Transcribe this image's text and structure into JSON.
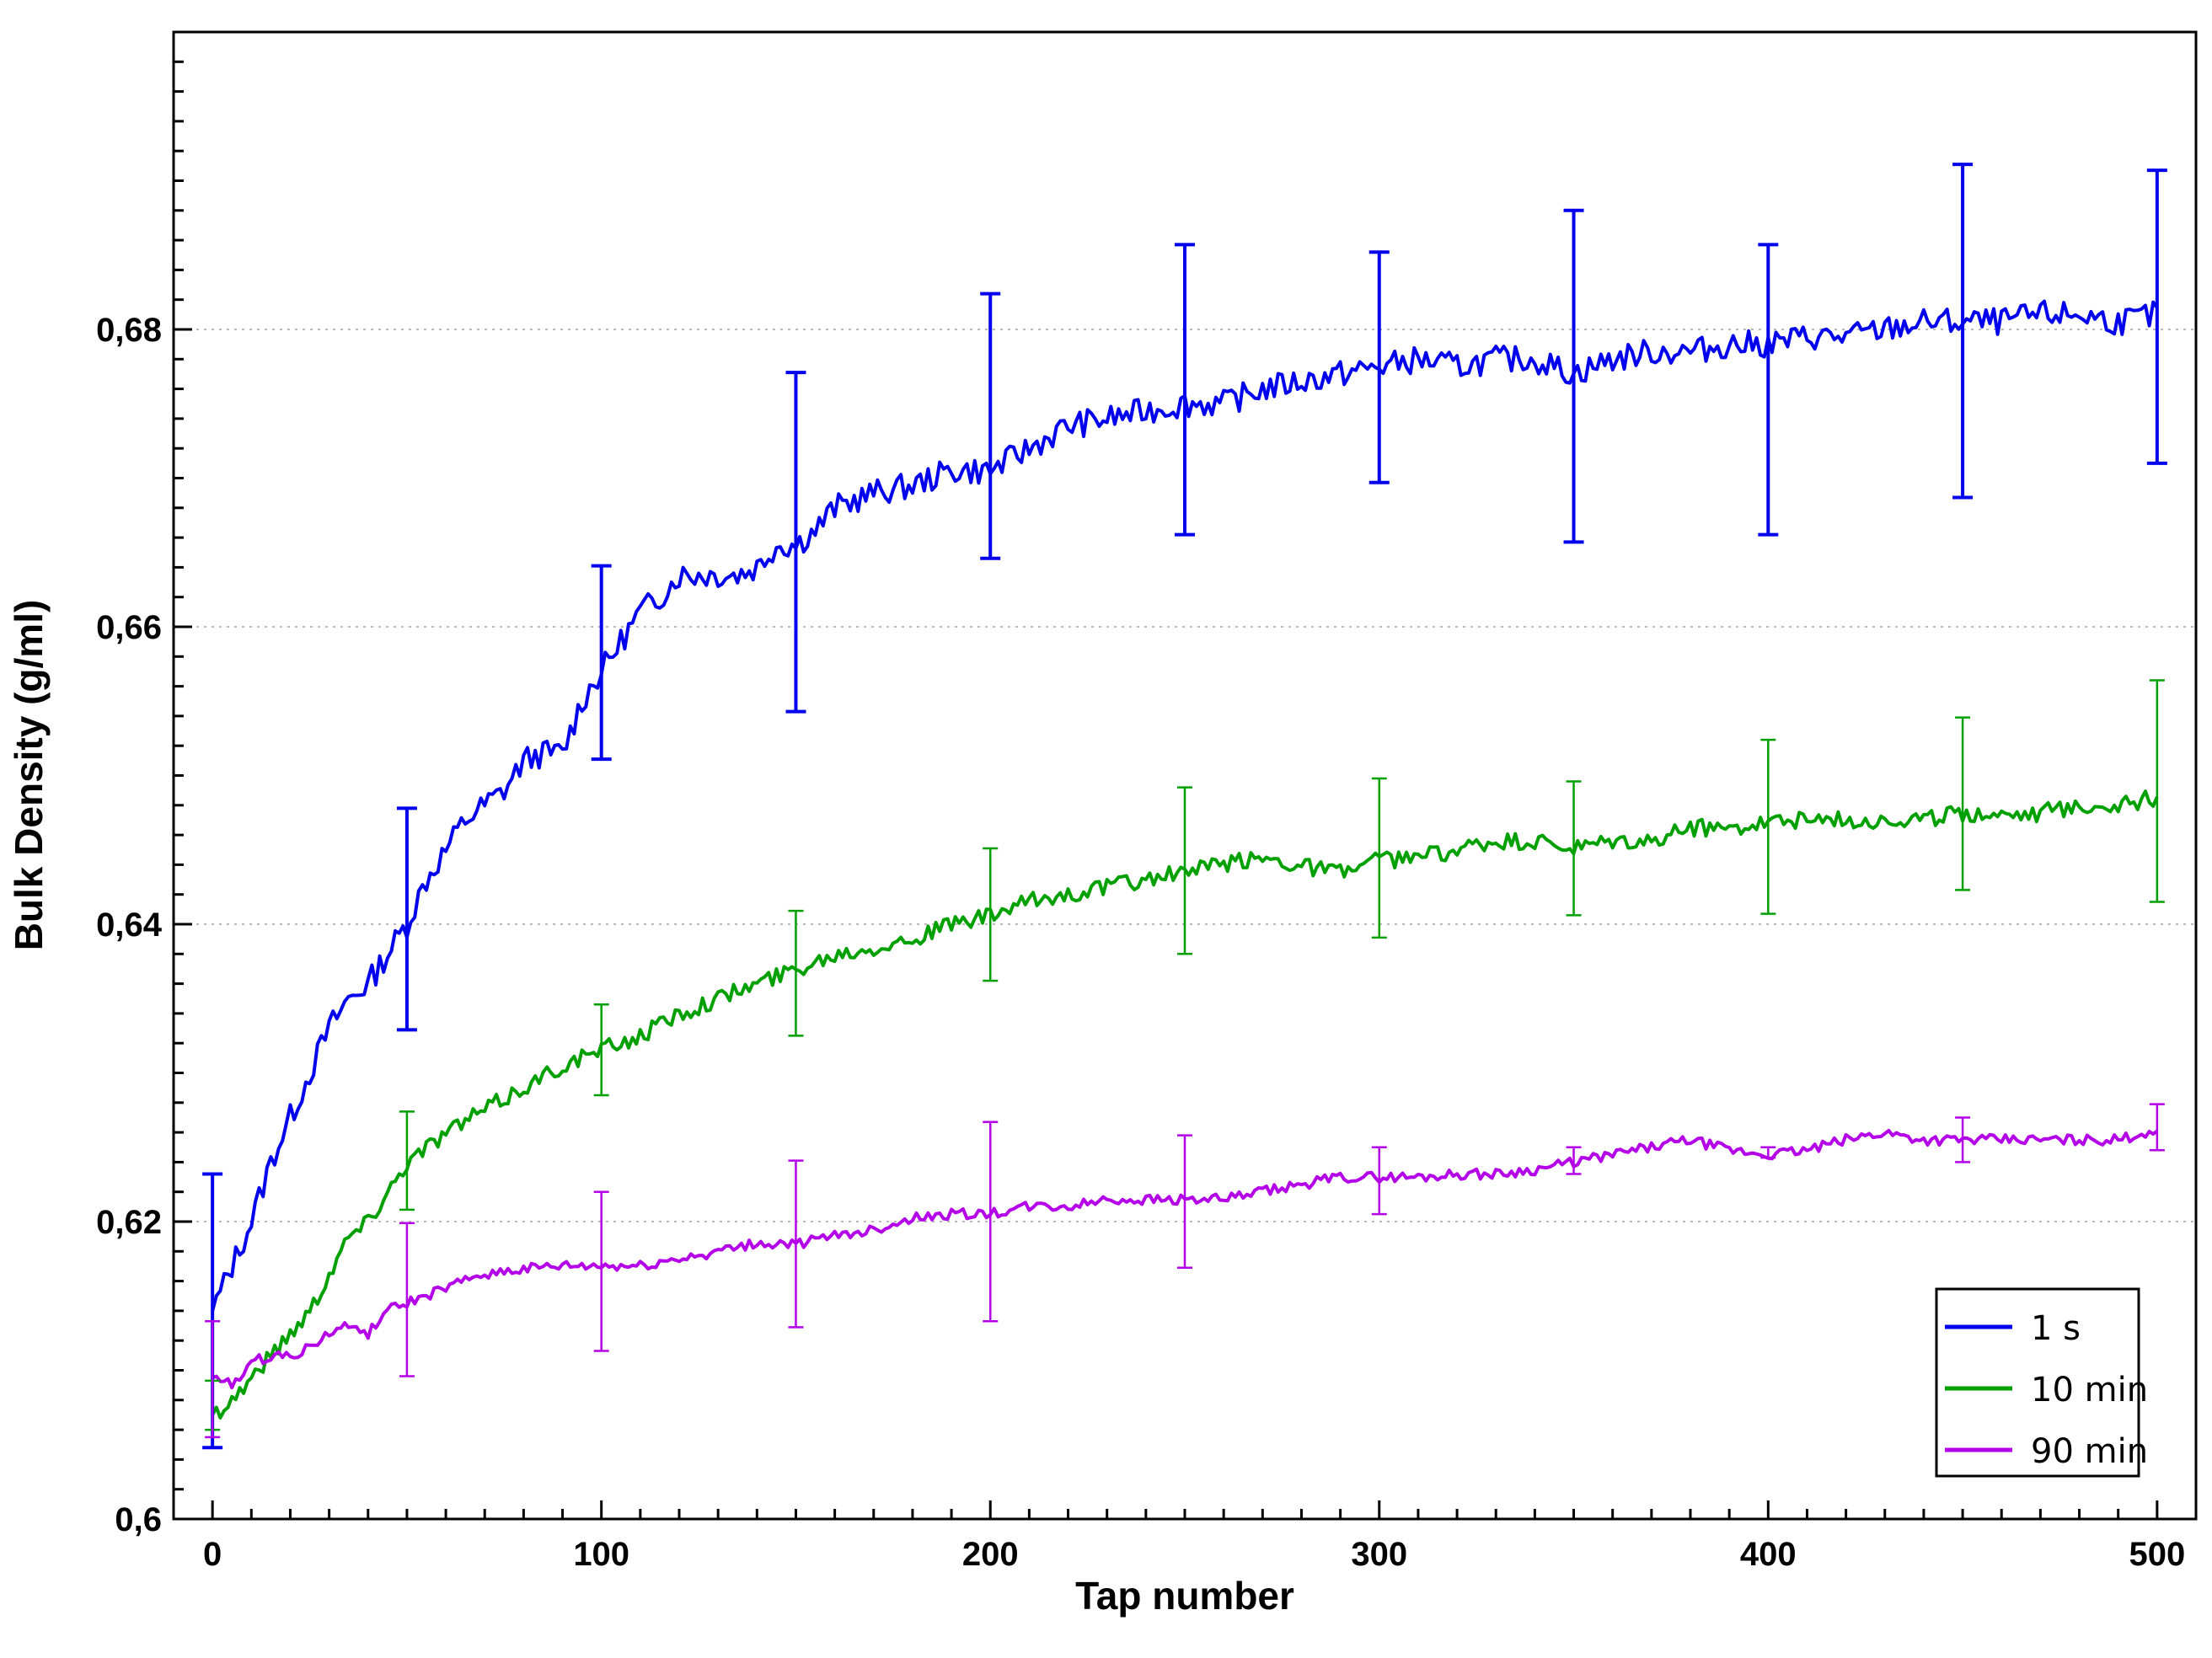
{
  "chart_data": {
    "type": "line",
    "title": "",
    "xlabel": "Tap number",
    "ylabel": "Bulk Density (g/ml)",
    "xlim": [
      -10,
      510
    ],
    "ylim": [
      0.6,
      0.7
    ],
    "x_ticks": [
      0,
      100,
      200,
      300,
      400,
      500
    ],
    "x_tick_labels": [
      "0",
      "100",
      "200",
      "300",
      "400",
      "500"
    ],
    "y_ticks": [
      0.6,
      0.62,
      0.64,
      0.66,
      0.68
    ],
    "y_tick_labels": [
      "0,6",
      "0,62",
      "0,64",
      "0,66",
      "0,68"
    ],
    "grid": "horizontal dotted at major y ticks",
    "legend": "bottom-right",
    "error_bar_x": [
      0,
      50,
      100,
      150,
      200,
      250,
      300,
      350,
      400,
      450,
      500
    ],
    "series": [
      {
        "name": "1 s",
        "color": "#0000ee",
        "x": [
          0,
          5,
          10,
          15,
          20,
          25,
          30,
          35,
          40,
          45,
          50,
          55,
          60,
          65,
          70,
          75,
          80,
          85,
          90,
          95,
          100,
          105,
          110,
          115,
          120,
          125,
          130,
          135,
          140,
          145,
          150,
          155,
          160,
          170,
          180,
          190,
          200,
          210,
          220,
          230,
          240,
          250,
          260,
          270,
          280,
          290,
          300,
          310,
          320,
          330,
          340,
          350,
          360,
          370,
          380,
          390,
          400,
          410,
          420,
          430,
          440,
          450,
          460,
          470,
          480,
          490,
          500
        ],
        "values": [
          0.614,
          0.617,
          0.62,
          0.624,
          0.627,
          0.63,
          0.633,
          0.635,
          0.636,
          0.638,
          0.64,
          0.643,
          0.645,
          0.647,
          0.648,
          0.649,
          0.651,
          0.6515,
          0.6515,
          0.655,
          0.657,
          0.659,
          0.661,
          0.662,
          0.6635,
          0.6635,
          0.6635,
          0.6635,
          0.664,
          0.6655,
          0.6655,
          0.6665,
          0.668,
          0.669,
          0.6695,
          0.6705,
          0.6705,
          0.672,
          0.6735,
          0.674,
          0.6745,
          0.675,
          0.675,
          0.676,
          0.6765,
          0.677,
          0.6775,
          0.678,
          0.6775,
          0.678,
          0.678,
          0.677,
          0.678,
          0.6785,
          0.6785,
          0.679,
          0.679,
          0.6795,
          0.6795,
          0.68,
          0.6805,
          0.6805,
          0.6805,
          0.681,
          0.681,
          0.6805,
          0.681
        ],
        "error_values": [
          0.614,
          0.6405,
          0.6575,
          0.6657,
          0.6705,
          0.676,
          0.6775,
          0.6768,
          0.6785,
          0.68,
          0.681
        ],
        "error_low": [
          0.6048,
          0.6329,
          0.6511,
          0.6543,
          0.6646,
          0.6662,
          0.6697,
          0.6657,
          0.6662,
          0.6687,
          0.671
        ],
        "error_high": [
          0.6232,
          0.6478,
          0.6641,
          0.6771,
          0.6824,
          0.6857,
          0.6852,
          0.688,
          0.6857,
          0.6911,
          0.6907
        ]
      },
      {
        "name": "10 min",
        "color": "#00a000",
        "x": [
          0,
          5,
          10,
          15,
          20,
          25,
          30,
          35,
          40,
          45,
          50,
          55,
          60,
          70,
          80,
          90,
          100,
          110,
          120,
          130,
          140,
          150,
          160,
          170,
          180,
          190,
          200,
          210,
          220,
          230,
          240,
          250,
          260,
          270,
          280,
          290,
          300,
          310,
          320,
          330,
          340,
          350,
          360,
          370,
          380,
          390,
          400,
          410,
          420,
          430,
          440,
          450,
          460,
          470,
          480,
          490,
          500
        ],
        "values": [
          0.607,
          0.608,
          0.6095,
          0.611,
          0.6125,
          0.614,
          0.6165,
          0.619,
          0.62,
          0.622,
          0.624,
          0.625,
          0.626,
          0.6275,
          0.629,
          0.6305,
          0.6315,
          0.6325,
          0.634,
          0.635,
          0.636,
          0.637,
          0.638,
          0.6385,
          0.639,
          0.64,
          0.6405,
          0.6415,
          0.642,
          0.6425,
          0.643,
          0.6435,
          0.644,
          0.6445,
          0.644,
          0.6435,
          0.6443,
          0.6445,
          0.645,
          0.6455,
          0.6455,
          0.645,
          0.6455,
          0.6455,
          0.6465,
          0.6465,
          0.647,
          0.647,
          0.647,
          0.647,
          0.647,
          0.6475,
          0.6475,
          0.6475,
          0.648,
          0.648,
          0.6485
        ],
        "error_values": [
          0.607,
          0.624,
          0.6315,
          0.6375,
          0.6405,
          0.6435,
          0.6443,
          0.6451,
          0.6466,
          0.6481,
          0.6489
        ],
        "error_low": [
          0.606,
          0.6208,
          0.6285,
          0.6325,
          0.6362,
          0.638,
          0.6391,
          0.6406,
          0.6407,
          0.6423,
          0.6415
        ],
        "error_high": [
          0.6093,
          0.6274,
          0.6346,
          0.6409,
          0.6451,
          0.6492,
          0.6498,
          0.6496,
          0.6524,
          0.6539,
          0.6564
        ]
      },
      {
        "name": "90 min",
        "color": "#b400e8",
        "x": [
          0,
          5,
          10,
          15,
          20,
          25,
          30,
          35,
          40,
          45,
          50,
          55,
          60,
          65,
          70,
          80,
          90,
          100,
          110,
          120,
          130,
          140,
          150,
          160,
          170,
          180,
          190,
          200,
          210,
          220,
          230,
          240,
          250,
          260,
          270,
          280,
          290,
          300,
          310,
          320,
          330,
          340,
          350,
          360,
          370,
          380,
          390,
          400,
          410,
          420,
          430,
          440,
          450,
          460,
          470,
          480,
          490,
          500
        ],
        "values": [
          0.6095,
          0.609,
          0.6105,
          0.611,
          0.611,
          0.6115,
          0.6125,
          0.613,
          0.6125,
          0.614,
          0.6145,
          0.615,
          0.6155,
          0.616,
          0.6165,
          0.6168,
          0.617,
          0.617,
          0.617,
          0.6175,
          0.618,
          0.6185,
          0.6185,
          0.619,
          0.6195,
          0.6202,
          0.6205,
          0.6205,
          0.621,
          0.621,
          0.6215,
          0.6215,
          0.6215,
          0.6215,
          0.622,
          0.6225,
          0.623,
          0.623,
          0.623,
          0.6232,
          0.6232,
          0.6235,
          0.624,
          0.6245,
          0.625,
          0.6255,
          0.6248,
          0.6245,
          0.6248,
          0.6255,
          0.626,
          0.6255,
          0.6255,
          0.6255,
          0.6255,
          0.6255,
          0.6255,
          0.6262
        ],
        "error_values": [
          0.6095,
          0.6145,
          0.617,
          0.6185,
          0.6205,
          0.6215,
          0.623,
          0.624,
          0.6245,
          0.6255,
          0.6262
        ],
        "error_low": [
          0.6055,
          0.6096,
          0.6113,
          0.6129,
          0.6133,
          0.6169,
          0.6205,
          0.6232,
          0.6243,
          0.624,
          0.6248
        ],
        "error_high": [
          0.6133,
          0.6199,
          0.622,
          0.6241,
          0.6267,
          0.6258,
          0.625,
          0.625,
          0.625,
          0.627,
          0.6279
        ]
      }
    ]
  }
}
